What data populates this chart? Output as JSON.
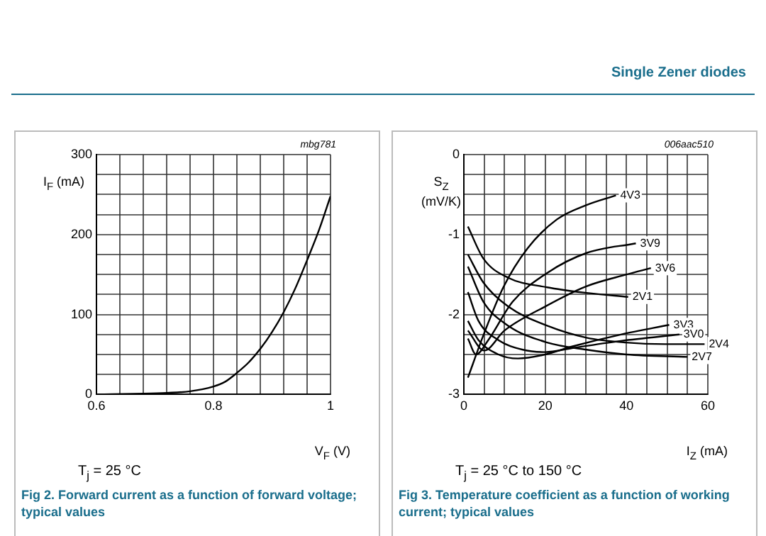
{
  "chart_data": [
    {
      "type": "line",
      "title": "Fig 2.  Forward current as a function of forward voltage; typical values",
      "xlabel": "V$_{F}$ (V)",
      "ylabel": "I$_{F}$ (mA)",
      "annotations": [
        "mbg781",
        "T$_{j}$ = 25 °C"
      ],
      "grid": true,
      "marker": "none",
      "line_style": "solid",
      "xlim": [
        0.6,
        1
      ],
      "xticks": [
        0.6,
        {
          "value": 0.64,
          "label": null
        },
        {
          "value": 0.68,
          "label": null
        },
        {
          "value": 0.72,
          "label": null
        },
        {
          "value": 0.76,
          "label": null
        },
        0.8,
        {
          "value": 0.84,
          "label": null
        },
        {
          "value": 0.88,
          "label": null
        },
        {
          "value": 0.92,
          "label": null
        },
        {
          "value": 0.96,
          "label": null
        },
        1
      ],
      "ylim": [
        0,
        300
      ],
      "yticks": [
        0,
        {
          "value": 25,
          "label": null
        },
        {
          "value": 50,
          "label": null
        },
        {
          "value": 75,
          "label": null
        },
        100,
        {
          "value": 125,
          "label": null
        },
        {
          "value": 150,
          "label": null
        },
        {
          "value": 175,
          "label": null
        },
        200,
        {
          "value": 225,
          "label": null
        },
        {
          "value": 250,
          "label": null
        },
        {
          "value": 275,
          "label": null
        },
        300
      ],
      "x": [
        0.6,
        0.68,
        0.72,
        0.76,
        0.8,
        0.82,
        0.84,
        0.86,
        0.88,
        0.9,
        0.92,
        0.94,
        0.96,
        0.98,
        1.0
      ],
      "series": [
        {
          "color": "#000000",
          "values": [
            0,
            1,
            2,
            4,
            10,
            16,
            27,
            40,
            57,
            78,
            103,
            133,
            168,
            205,
            248
          ]
        }
      ]
    },
    {
      "type": "line",
      "title": "Fig 3.  Temperature coefficient as a function of working current; typical values",
      "subtitle": "Single Zener diodes",
      "xlabel": "I$_{Z}$ (mA)",
      "ylabel": "S$_{Z}$ (mV/K)",
      "annotations": [
        "006aac510",
        "T$_{j}$ = 25 °C to 150 °C"
      ],
      "grid": true,
      "marker": "none",
      "line_style": "solid",
      "xlim": [
        0,
        60
      ],
      "xticks": [
        0,
        {
          "value": 5,
          "label": null
        },
        {
          "value": 10,
          "label": null
        },
        {
          "value": 15,
          "label": null
        },
        20,
        {
          "value": 25,
          "label": null
        },
        {
          "value": 30,
          "label": null
        },
        {
          "value": 35,
          "label": null
        },
        40,
        {
          "value": 45,
          "label": null
        },
        {
          "value": 50,
          "label": null
        },
        {
          "value": 55,
          "label": null
        },
        60
      ],
      "ylim": [
        -3,
        0
      ],
      "yticks": [
        -3,
        {
          "value": -2.75,
          "label": null
        },
        {
          "value": -2.5,
          "label": null
        },
        {
          "value": -2.25,
          "label": null
        },
        -2,
        {
          "value": -1.75,
          "label": null
        },
        {
          "value": -1.5,
          "label": null
        },
        {
          "value": -1.25,
          "label": null
        },
        -1,
        {
          "value": -0.75,
          "label": null
        },
        {
          "value": -0.5,
          "label": null
        },
        {
          "value": -0.25,
          "label": null
        },
        0
      ],
      "series": [
        {
          "name": "4V3",
          "color": "#000000",
          "x": [
            1,
            4.8,
            9.7,
            15.7,
            22.9,
            30.2,
            37.4
          ],
          "values": [
            -2.79,
            -2.26,
            -1.66,
            -1.17,
            -0.81,
            -0.63,
            -0.51
          ]
        },
        {
          "name": "3V9",
          "color": "#000000",
          "x": [
            1,
            3,
            6,
            12,
            20.5,
            30.2,
            42.3
          ],
          "values": [
            -2.3,
            -2.5,
            -2.32,
            -1.84,
            -1.48,
            -1.23,
            -1.11
          ]
        },
        {
          "name": "3V6",
          "color": "#000000",
          "x": [
            1,
            5,
            10,
            20,
            30,
            40,
            46
          ],
          "values": [
            -2.2,
            -2.45,
            -2.2,
            -1.9,
            -1.65,
            -1.5,
            -1.42
          ]
        },
        {
          "name": "2V1",
          "color": "#000000",
          "x": [
            1,
            4.8,
            10.9,
            20.5,
            30.2,
            40.4
          ],
          "values": [
            -0.9,
            -1.3,
            -1.54,
            -1.66,
            -1.73,
            -1.78
          ]
        },
        {
          "name": "3V3",
          "color": "#000000",
          "x": [
            1,
            3.6,
            8.5,
            13.3,
            20,
            26.6,
            38.6,
            50.5
          ],
          "values": [
            -2.08,
            -2.32,
            -2.5,
            -2.55,
            -2.5,
            -2.4,
            -2.25,
            -2.13
          ]
        },
        {
          "name": "3V0",
          "color": "#000000",
          "x": [
            1,
            3.6,
            8.5,
            14.5,
            20,
            26.6,
            38.6,
            53
          ],
          "values": [
            -1.72,
            -2.08,
            -2.32,
            -2.44,
            -2.47,
            -2.42,
            -2.33,
            -2.25
          ]
        },
        {
          "name": "2V4",
          "color": "#000000",
          "x": [
            1,
            4.8,
            10.9,
            20.5,
            30.2,
            39.8,
            49.5,
            59.2
          ],
          "values": [
            -1.25,
            -1.6,
            -1.9,
            -2.14,
            -2.29,
            -2.35,
            -2.37,
            -2.37
          ]
        },
        {
          "name": "2V7",
          "color": "#000000",
          "x": [
            1,
            4.8,
            10.9,
            20.5,
            30.2,
            40,
            55
          ],
          "values": [
            -1.4,
            -1.84,
            -2.14,
            -2.35,
            -2.44,
            -2.5,
            -2.53
          ]
        }
      ]
    }
  ]
}
